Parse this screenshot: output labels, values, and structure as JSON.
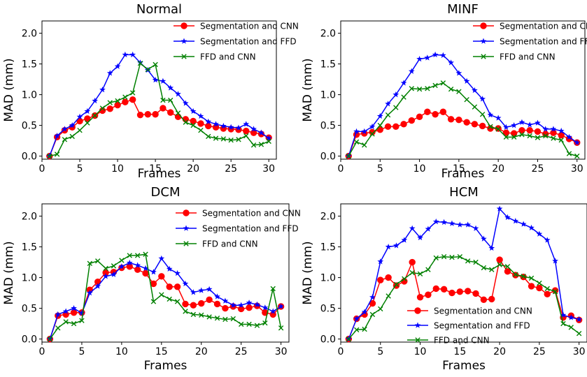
{
  "chart_data": [
    {
      "type": "line",
      "title": "Normal",
      "xlabel": "Frames",
      "ylabel": "MAD (mm)",
      "xlim": [
        0,
        31
      ],
      "ylim": [
        -0.05,
        2.2
      ],
      "xticks": [
        0,
        5,
        10,
        15,
        20,
        25,
        30
      ],
      "yticks": [
        0.0,
        0.5,
        1.0,
        1.5,
        2.0
      ],
      "legend_position": "top-right",
      "grid": false,
      "x": [
        1,
        2,
        3,
        4,
        5,
        6,
        7,
        8,
        9,
        10,
        11,
        12,
        13,
        14,
        15,
        16,
        17,
        18,
        19,
        20,
        21,
        22,
        23,
        24,
        25,
        26,
        27,
        28,
        29,
        30
      ],
      "series": [
        {
          "name": "Segmentation and CNN",
          "color": "#ff0000",
          "marker": "circle",
          "values": [
            0.0,
            0.31,
            0.42,
            0.47,
            0.57,
            0.61,
            0.66,
            0.74,
            0.77,
            0.83,
            0.88,
            0.92,
            0.67,
            0.68,
            0.68,
            0.78,
            0.71,
            0.64,
            0.6,
            0.57,
            0.53,
            0.49,
            0.47,
            0.45,
            0.44,
            0.43,
            0.41,
            0.38,
            0.36,
            0.3
          ]
        },
        {
          "name": "Segmentation and FFD",
          "color": "#0000ff",
          "marker": "star",
          "values": [
            0.0,
            0.33,
            0.44,
            0.5,
            0.64,
            0.73,
            0.9,
            1.08,
            1.35,
            1.46,
            1.65,
            1.65,
            1.52,
            1.4,
            1.24,
            1.22,
            1.11,
            1.01,
            0.86,
            0.73,
            0.65,
            0.56,
            0.52,
            0.49,
            0.47,
            0.46,
            0.52,
            0.44,
            0.38,
            0.29
          ]
        },
        {
          "name": "FFD and CNN",
          "color": "#008000",
          "marker": "x",
          "values": [
            0.0,
            0.03,
            0.27,
            0.32,
            0.42,
            0.54,
            0.66,
            0.78,
            0.87,
            0.9,
            0.96,
            1.03,
            1.51,
            1.41,
            1.49,
            0.91,
            0.91,
            0.7,
            0.55,
            0.5,
            0.42,
            0.32,
            0.29,
            0.28,
            0.26,
            0.27,
            0.33,
            0.18,
            0.19,
            0.24
          ]
        }
      ]
    },
    {
      "type": "line",
      "title": "MINF",
      "xlabel": "Frames",
      "ylabel": "MAD (mm)",
      "xlim": [
        0,
        31
      ],
      "ylim": [
        -0.05,
        2.2
      ],
      "xticks": [
        0,
        5,
        10,
        15,
        20,
        25,
        30
      ],
      "yticks": [
        0.0,
        0.5,
        1.0,
        1.5,
        2.0
      ],
      "legend_position": "top-right",
      "grid": false,
      "x": [
        1,
        2,
        3,
        4,
        5,
        6,
        7,
        8,
        9,
        10,
        11,
        12,
        13,
        14,
        15,
        16,
        17,
        18,
        19,
        20,
        21,
        22,
        23,
        24,
        25,
        26,
        27,
        28,
        29,
        30
      ],
      "series": [
        {
          "name": "Segmentation and CNN",
          "color": "#ff0000",
          "marker": "circle",
          "values": [
            0.0,
            0.35,
            0.37,
            0.39,
            0.43,
            0.48,
            0.48,
            0.52,
            0.58,
            0.64,
            0.72,
            0.68,
            0.72,
            0.6,
            0.59,
            0.55,
            0.52,
            0.49,
            0.45,
            0.45,
            0.38,
            0.37,
            0.42,
            0.42,
            0.4,
            0.36,
            0.38,
            0.34,
            0.28,
            0.22
          ]
        },
        {
          "name": "Segmentation and FFD",
          "color": "#0000ff",
          "marker": "star",
          "values": [
            0.0,
            0.4,
            0.4,
            0.48,
            0.65,
            0.85,
            1.0,
            1.19,
            1.38,
            1.58,
            1.6,
            1.65,
            1.64,
            1.52,
            1.35,
            1.22,
            1.07,
            0.93,
            0.67,
            0.62,
            0.47,
            0.5,
            0.55,
            0.51,
            0.54,
            0.44,
            0.44,
            0.41,
            0.31,
            0.22
          ]
        },
        {
          "name": "FFD and CNN",
          "color": "#008000",
          "marker": "x",
          "values": [
            0.0,
            0.23,
            0.18,
            0.36,
            0.5,
            0.67,
            0.79,
            0.96,
            1.1,
            1.09,
            1.1,
            1.15,
            1.19,
            1.09,
            1.05,
            0.92,
            0.8,
            0.68,
            0.48,
            0.44,
            0.31,
            0.31,
            0.35,
            0.33,
            0.3,
            0.33,
            0.29,
            0.26,
            0.04,
            0.0
          ]
        }
      ]
    },
    {
      "type": "line",
      "title": "DCM",
      "xlabel": "Frames",
      "ylabel": "MAD (mm)",
      "xlim": [
        0,
        31
      ],
      "ylim": [
        -0.05,
        2.2
      ],
      "xticks": [
        0,
        5,
        10,
        15,
        20,
        25,
        30
      ],
      "yticks": [
        0.0,
        0.5,
        1.0,
        1.5,
        2.0
      ],
      "legend_position": "top-right",
      "grid": false,
      "x": [
        1,
        2,
        3,
        4,
        5,
        6,
        7,
        8,
        9,
        10,
        11,
        12,
        13,
        14,
        15,
        16,
        17,
        18,
        19,
        20,
        21,
        22,
        23,
        24,
        25,
        26,
        27,
        28,
        29,
        30
      ],
      "series": [
        {
          "name": "Segmentation and CNN",
          "color": "#ff0000",
          "marker": "circle",
          "values": [
            0.0,
            0.38,
            0.4,
            0.43,
            0.43,
            0.8,
            0.93,
            1.08,
            1.09,
            1.16,
            1.18,
            1.13,
            1.07,
            0.9,
            1.02,
            0.85,
            0.85,
            0.57,
            0.55,
            0.58,
            0.64,
            0.57,
            0.5,
            0.53,
            0.49,
            0.51,
            0.54,
            0.43,
            0.4,
            0.53
          ]
        },
        {
          "name": "Segmentation and FFD",
          "color": "#0000ff",
          "marker": "star",
          "values": [
            0.0,
            0.4,
            0.45,
            0.5,
            0.42,
            0.75,
            0.86,
            1.02,
            1.05,
            1.18,
            1.24,
            1.2,
            1.15,
            1.09,
            1.31,
            1.14,
            1.07,
            0.9,
            0.76,
            0.79,
            0.81,
            0.69,
            0.62,
            0.55,
            0.55,
            0.59,
            0.56,
            0.51,
            0.45,
            0.53
          ]
        },
        {
          "name": "FFD and CNN",
          "color": "#008000",
          "marker": "x",
          "values": [
            0.0,
            0.18,
            0.28,
            0.25,
            0.3,
            1.23,
            1.27,
            1.15,
            1.19,
            1.28,
            1.36,
            1.36,
            1.38,
            0.61,
            0.72,
            0.65,
            0.61,
            0.45,
            0.4,
            0.39,
            0.36,
            0.34,
            0.32,
            0.33,
            0.24,
            0.24,
            0.22,
            0.26,
            0.82,
            0.18
          ]
        }
      ]
    },
    {
      "type": "line",
      "title": "HCM",
      "xlabel": "Frames",
      "ylabel": "MAD (mm)",
      "xlim": [
        0,
        31
      ],
      "ylim": [
        -0.05,
        2.2
      ],
      "xticks": [
        0,
        5,
        10,
        15,
        20,
        25,
        30
      ],
      "yticks": [
        0.0,
        0.5,
        1.0,
        1.5,
        2.0
      ],
      "legend_position": "center-left",
      "grid": false,
      "x": [
        1,
        2,
        3,
        4,
        5,
        6,
        7,
        8,
        9,
        10,
        11,
        12,
        13,
        14,
        15,
        16,
        17,
        18,
        19,
        20,
        21,
        22,
        23,
        24,
        25,
        26,
        27,
        28,
        29,
        30
      ],
      "series": [
        {
          "name": "Segmentation and CNN",
          "color": "#ff0000",
          "marker": "circle",
          "values": [
            0.0,
            0.33,
            0.4,
            0.58,
            0.96,
            1.0,
            0.87,
            0.94,
            1.25,
            0.68,
            0.72,
            0.82,
            0.81,
            0.75,
            0.77,
            0.78,
            0.74,
            0.64,
            0.65,
            1.29,
            1.1,
            1.04,
            1.01,
            0.86,
            0.83,
            0.73,
            0.79,
            0.35,
            0.38,
            0.31
          ]
        },
        {
          "name": "Segmentation and FFD",
          "color": "#0000ff",
          "marker": "star",
          "values": [
            0.0,
            0.33,
            0.44,
            0.68,
            1.26,
            1.5,
            1.52,
            1.61,
            1.8,
            1.65,
            1.79,
            1.91,
            1.9,
            1.88,
            1.86,
            1.86,
            1.8,
            1.63,
            1.48,
            2.12,
            1.98,
            1.92,
            1.87,
            1.81,
            1.71,
            1.61,
            1.27,
            0.39,
            0.35,
            0.32
          ]
        },
        {
          "name": "FFD and CNN",
          "color": "#008000",
          "marker": "x",
          "values": [
            0.0,
            0.15,
            0.16,
            0.4,
            0.49,
            0.7,
            0.89,
            0.98,
            1.08,
            1.06,
            1.13,
            1.32,
            1.34,
            1.33,
            1.34,
            1.27,
            1.25,
            1.16,
            1.13,
            1.21,
            1.18,
            1.05,
            1.02,
            0.99,
            0.91,
            0.82,
            0.77,
            0.25,
            0.19,
            0.09
          ]
        }
      ]
    }
  ]
}
